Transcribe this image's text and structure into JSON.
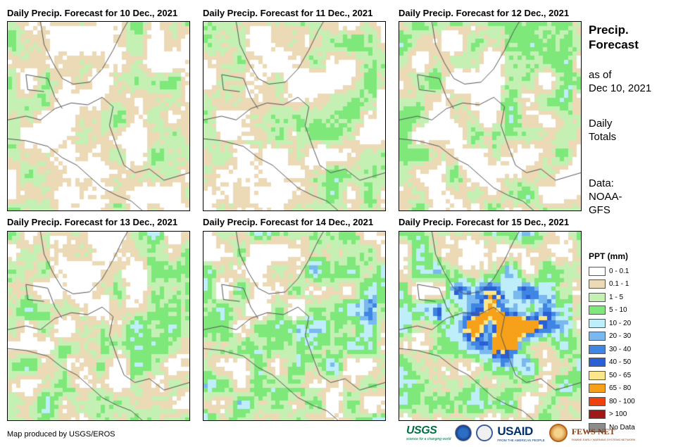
{
  "panels": [
    {
      "title": "Daily Precip. Forecast for 10 Dec., 2021",
      "seed": 11,
      "intensity": 0.3,
      "band": 0.25,
      "storm": 0
    },
    {
      "title": "Daily Precip. Forecast for 11 Dec., 2021",
      "seed": 23,
      "intensity": 0.32,
      "band": 0.35,
      "storm": 0
    },
    {
      "title": "Daily Precip. Forecast for 12 Dec., 2021",
      "seed": 37,
      "intensity": 0.45,
      "band": 0.35,
      "storm": 0
    },
    {
      "title": "Daily Precip. Forecast for 13 Dec., 2021",
      "seed": 41,
      "intensity": 0.5,
      "band": 0.4,
      "storm": 0
    },
    {
      "title": "Daily Precip. Forecast for 14 Dec., 2021",
      "seed": 53,
      "intensity": 0.72,
      "band": 0.45,
      "storm": 0
    },
    {
      "title": "Daily Precip. Forecast for 15 Dec., 2021",
      "seed": 67,
      "intensity": 0.8,
      "band": 0.8,
      "storm": 1
    }
  ],
  "sidebar": {
    "title_line1": "Precip.",
    "title_line2": "Forecast",
    "asof_line1": "as of",
    "asof_line2": "Dec 10, 2021",
    "daily_line1": "Daily",
    "daily_line2": "Totals",
    "data_line1": "Data:",
    "data_line2": "NOAA-",
    "data_line3": "GFS"
  },
  "legend": {
    "title": "PPT (mm)",
    "items": [
      {
        "label": "0 - 0.1",
        "color": "#ffffff"
      },
      {
        "label": "0.1 - 1",
        "color": "#ecd9b5"
      },
      {
        "label": "1 - 5",
        "color": "#c4f0b4"
      },
      {
        "label": "5 - 10",
        "color": "#7ee87a"
      },
      {
        "label": "10 - 20",
        "color": "#bdeefa"
      },
      {
        "label": "20 - 30",
        "color": "#7ab8f0"
      },
      {
        "label": "30 - 40",
        "color": "#3f86e4"
      },
      {
        "label": "40 - 50",
        "color": "#2a5fd6"
      },
      {
        "label": "50 - 65",
        "color": "#fbe68a"
      },
      {
        "label": "65 - 80",
        "color": "#f7a11a"
      },
      {
        "label": "80 - 100",
        "color": "#f0400c"
      },
      {
        "label": "> 100",
        "color": "#a01818"
      },
      {
        "label": "No Data",
        "color": "#8c8c8c"
      }
    ]
  },
  "credit": "Map produced by USGS/EROS",
  "logos": {
    "usgs": "USGS",
    "usgs_tag": "science for a changing world",
    "usaid_main": "USAID",
    "usaid_tag": "FROM THE AMERICAN PEOPLE",
    "fews": "FEWS NET",
    "fews_tag": "FAMINE EARLY WARNING SYSTEMS NETWORK"
  }
}
